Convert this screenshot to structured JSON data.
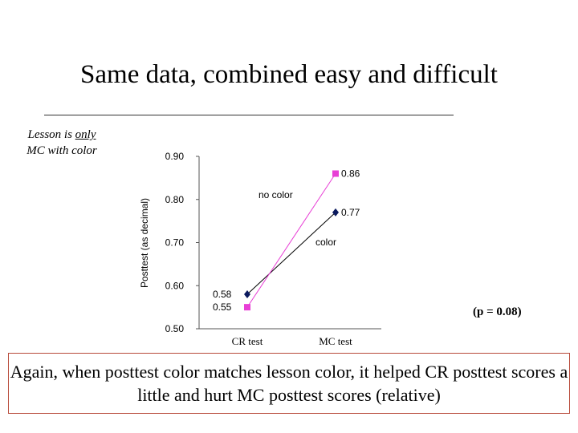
{
  "title": "Same data, combined easy and difficult",
  "lesson_note": {
    "line1_prefix": "Lesson is ",
    "line1_underlined": "only",
    "line2": "MC with color"
  },
  "p_value_note": "(p = 0.08)",
  "caption": "Again, when posttest color matches lesson color, it helped CR posttest scores a little and hurt MC posttest scores (relative)",
  "chart_data": {
    "type": "line",
    "categories": [
      "CR test",
      "MC test"
    ],
    "ylabel": "Posttest (as decimal)",
    "ylim": [
      0.5,
      0.9
    ],
    "yticks": [
      "0.50",
      "0.60",
      "0.70",
      "0.80",
      "0.90"
    ],
    "grid": false,
    "series": [
      {
        "name": "no color",
        "values": [
          0.58,
          0.77
        ],
        "labels": [
          "0.58",
          "0.77"
        ],
        "color": "#0b1a5e",
        "marker": "diamond"
      },
      {
        "name": "color",
        "values": [
          0.55,
          0.86
        ],
        "labels": [
          "0.55",
          "0.86"
        ],
        "color": "#e83fd6",
        "marker": "square"
      }
    ]
  }
}
